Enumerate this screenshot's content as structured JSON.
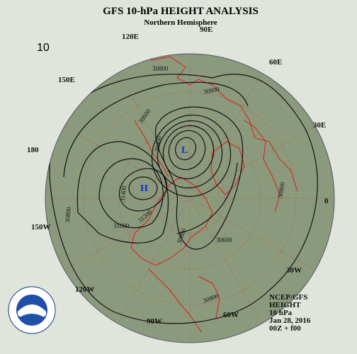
{
  "header": {
    "title": "GFS 10-hPa HEIGHT ANALYSIS",
    "subtitle": "Northern Hemisphere"
  },
  "panel_label": "10",
  "longitude_labels": [
    "120E",
    "90E",
    "60E",
    "30E",
    "0",
    "30W",
    "60W",
    "90W",
    "120W",
    "150W",
    "180",
    "150E"
  ],
  "contour_labels": [
    "30800",
    "30800",
    "30600",
    "30400",
    "31400",
    "31200",
    "31000",
    "30800",
    "30800",
    "30600",
    "30800",
    "30800"
  ],
  "centers": [
    "L",
    "H"
  ],
  "info": [
    "NCEP/GFS",
    "HEIGHT",
    "10 hPa",
    "Jan 28, 2016",
    "00Z + f00"
  ]
}
